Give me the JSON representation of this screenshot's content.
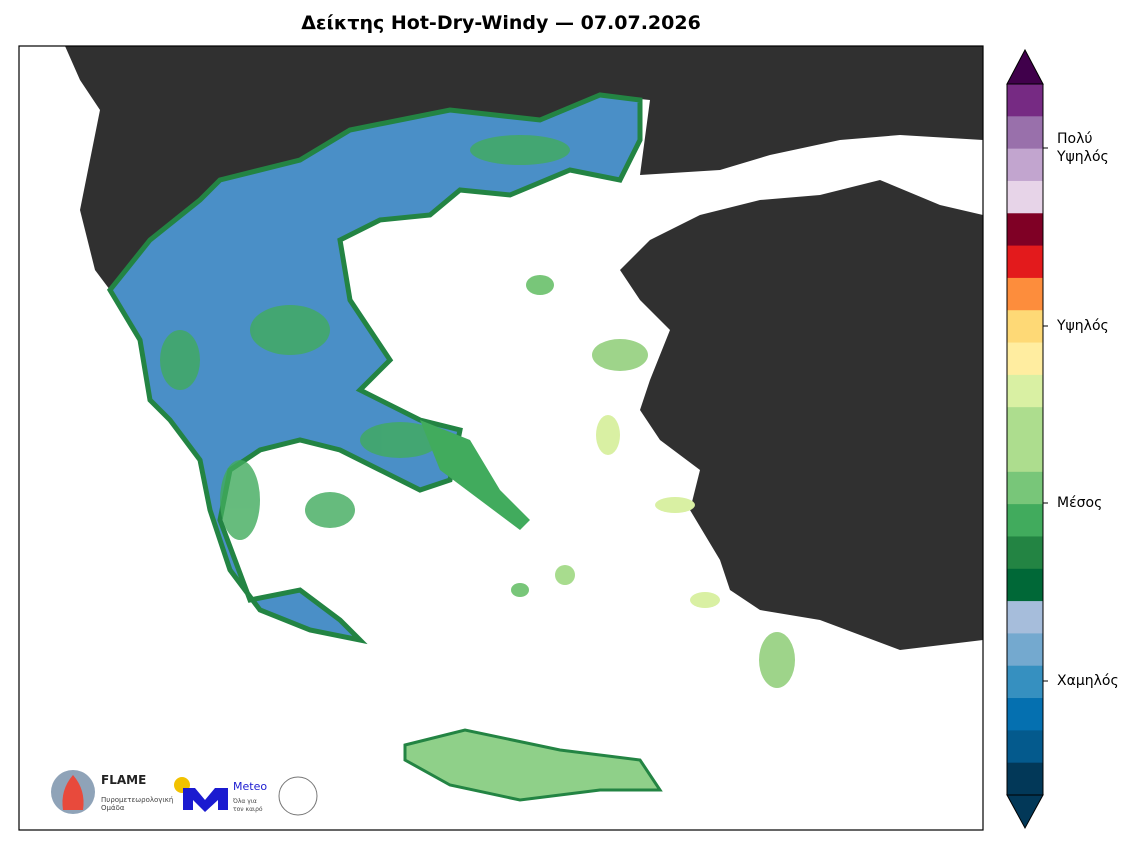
{
  "title": "Δείκτης Hot-Dry-Windy — 07.07.2026",
  "colorbar": {
    "colors": [
      "#762a83",
      "#9970ab",
      "#c2a5cf",
      "#e7d4e8",
      "#7f0025",
      "#e31a1c",
      "#fd8d3c",
      "#fed976",
      "#ffeda0",
      "#d9f0a3",
      "#addd8e",
      "#addd8e",
      "#78c679",
      "#41ab5d",
      "#238443",
      "#006837",
      "#a6bddb",
      "#74a9cf",
      "#3690c0",
      "#0570b0",
      "#045a8d",
      "#023858"
    ],
    "over_color": "#40004b",
    "under_color": "#023858",
    "labels": [
      "Πολύ\nΥψηλός",
      "Υψηλός",
      "Μέσος",
      "Χαμηλός"
    ]
  },
  "logos": {
    "flame_name": "FLAME",
    "flame_caption": "Πυρομετεωρολογική\nΟμάδα",
    "meteo_name": "Meteo",
    "meteo_caption": "Όλα για\nτον καιρό"
  }
}
